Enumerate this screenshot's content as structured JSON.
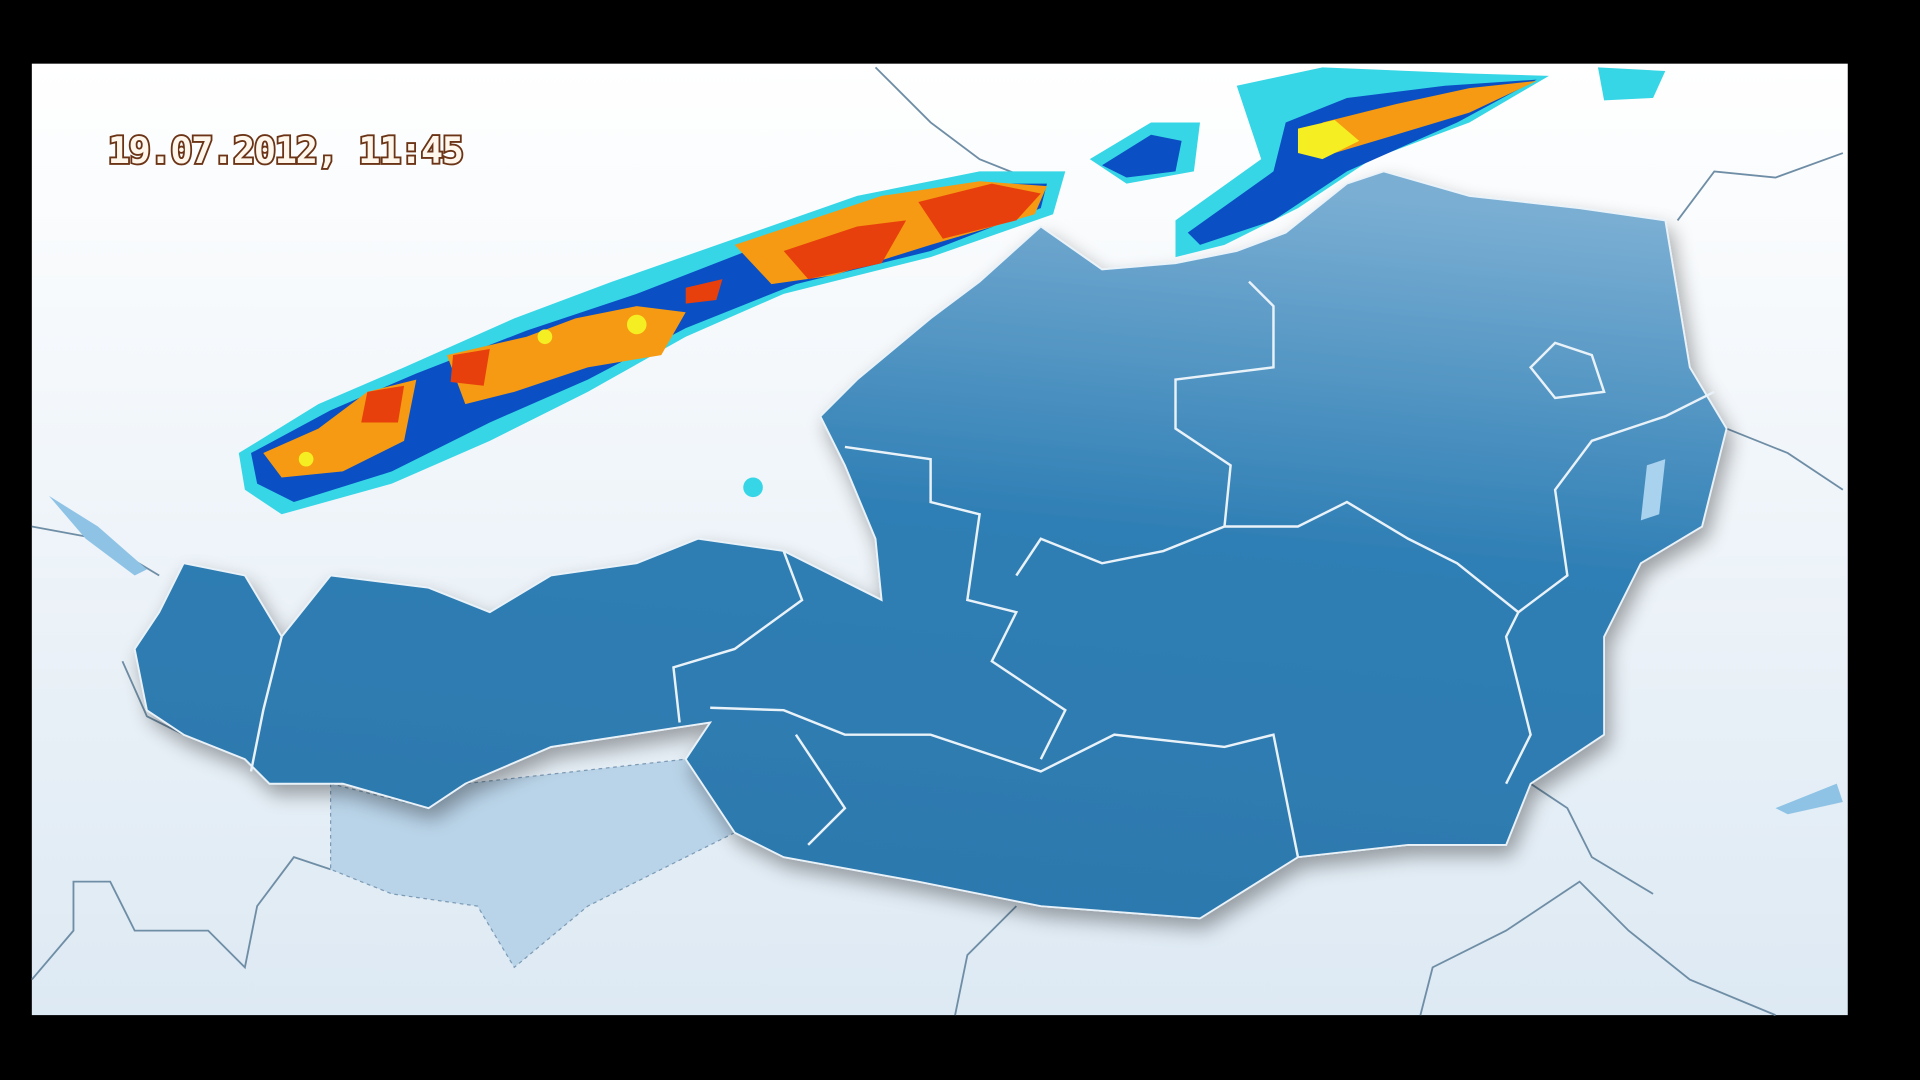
{
  "map": {
    "timestamp": "19.07.2012, 11:45",
    "colors": {
      "background": "#000000",
      "sea_land": "#eef4fa",
      "austria": "#2f7fb5",
      "south_tyrol": "#b9d3e8",
      "radar_light": "#36d6e6",
      "radar_medium": "#0a4fc4",
      "radar_yellow": "#f5ee22",
      "radar_orange": "#f59a12",
      "radar_red": "#e8400c"
    }
  }
}
